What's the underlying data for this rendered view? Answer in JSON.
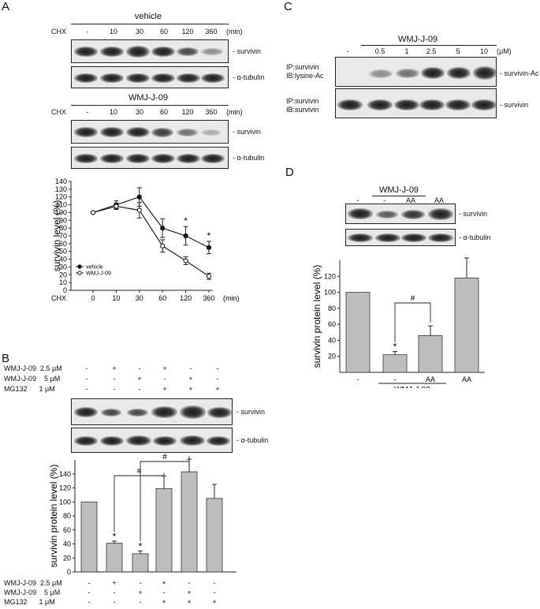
{
  "panels": {
    "A": {
      "letter": "A",
      "vehicle_title": "vehicle",
      "wmj_title": "WMJ-J-09",
      "chx_label": "CHX",
      "lanes": [
        "-",
        "10",
        "30",
        "60",
        "120",
        "360"
      ],
      "unit": "(min)",
      "band_labels": [
        "- survivin",
        "- α-tubulin"
      ]
    },
    "B": {
      "letter": "B",
      "rows": [
        {
          "label": "WMJ-J-09  2.5 μM",
          "marks": [
            "-",
            "+",
            "-",
            "+",
            "-",
            "-"
          ]
        },
        {
          "label": "WMJ-J-09    5 μM",
          "marks": [
            "-",
            "-",
            "+",
            "-",
            "+",
            "-"
          ]
        },
        {
          "label": "MG132      1 μM",
          "marks": [
            "-",
            "-",
            "-",
            "+",
            "+",
            "+"
          ]
        }
      ],
      "band_labels": [
        "- survivin",
        "- α-tubulin"
      ]
    },
    "C": {
      "letter": "C",
      "title": "WMJ-J-09",
      "lanes": [
        "-",
        "0.5",
        "1",
        "2.5",
        "5",
        "10"
      ],
      "unit": "(μM)",
      "ip_top": [
        "IP:survivin",
        "IB:lysine-Ac"
      ],
      "ip_bottom": [
        "IP:survivin",
        "IB:survivin"
      ],
      "band_labels": [
        "- survivin-Ac",
        "- survivin"
      ]
    },
    "D": {
      "letter": "D",
      "title": "WMJ-J-09",
      "lanes": [
        "-",
        "-",
        "AA",
        "AA"
      ],
      "band_labels": [
        "- survivin",
        "- α-tubulin"
      ]
    }
  },
  "chart_data": [
    {
      "type": "line",
      "panel": "A",
      "xlabel": "CHX",
      "x_unit": "(min)",
      "ylabel": "survivin level (%)",
      "categories": [
        "0",
        "10",
        "30",
        "60",
        "120",
        "360"
      ],
      "ylim": [
        0,
        140
      ],
      "yticks": [
        0,
        10,
        20,
        30,
        40,
        50,
        60,
        70,
        80,
        90,
        100,
        110,
        120,
        130,
        140
      ],
      "legend": "bottom-left",
      "series": [
        {
          "name": "vehicle",
          "marker": "filled",
          "values": [
            100,
            110,
            120,
            80,
            70,
            55
          ],
          "errors": [
            0,
            5,
            12,
            12,
            12,
            8
          ]
        },
        {
          "name": "WMJ-J-09",
          "marker": "open",
          "values": [
            100,
            108,
            103,
            57,
            38,
            18
          ],
          "errors": [
            0,
            4,
            10,
            8,
            5,
            4
          ]
        }
      ],
      "annotations": [
        {
          "x": "120",
          "text": "*"
        },
        {
          "x": "360",
          "text": "*"
        }
      ]
    },
    {
      "type": "bar",
      "panel": "B",
      "ylabel": "survivin protein level (%)",
      "ylim": [
        0,
        160
      ],
      "yticks": [
        0,
        20,
        40,
        60,
        80,
        100,
        120,
        140
      ],
      "values": [
        100,
        41,
        26,
        119,
        143,
        105
      ],
      "errors": [
        0,
        3,
        4,
        18,
        18,
        20
      ],
      "stars": [
        "",
        "*",
        "*",
        "",
        "",
        ""
      ],
      "brackets": [
        {
          "from": 1,
          "to": 3,
          "text": "#"
        },
        {
          "from": 2,
          "to": 4,
          "text": "#"
        }
      ],
      "rows": [
        {
          "label": "WMJ-J-09  2.5 μM",
          "marks": [
            "-",
            "+",
            "-",
            "+",
            "-",
            "-"
          ]
        },
        {
          "label": "WMJ-J-09    5 μM",
          "marks": [
            "-",
            "-",
            "+",
            "-",
            "+",
            "-"
          ]
        },
        {
          "label": "MG132      1 μM",
          "marks": [
            "-",
            "-",
            "-",
            "+",
            "+",
            "+"
          ]
        }
      ]
    },
    {
      "type": "bar",
      "panel": "D",
      "ylabel": "survivin protein level (%)",
      "ylim": [
        0,
        140
      ],
      "yticks": [
        20,
        40,
        60,
        80,
        100,
        120
      ],
      "categories": [
        "-",
        "-",
        "AA",
        "AA"
      ],
      "group_label": "WMJ-J-09",
      "values": [
        100,
        22,
        46,
        118
      ],
      "errors": [
        0,
        4,
        12,
        25
      ],
      "stars": [
        "",
        "*",
        "",
        ""
      ],
      "brackets": [
        {
          "from": 1,
          "to": 2,
          "text": "#"
        }
      ]
    }
  ]
}
